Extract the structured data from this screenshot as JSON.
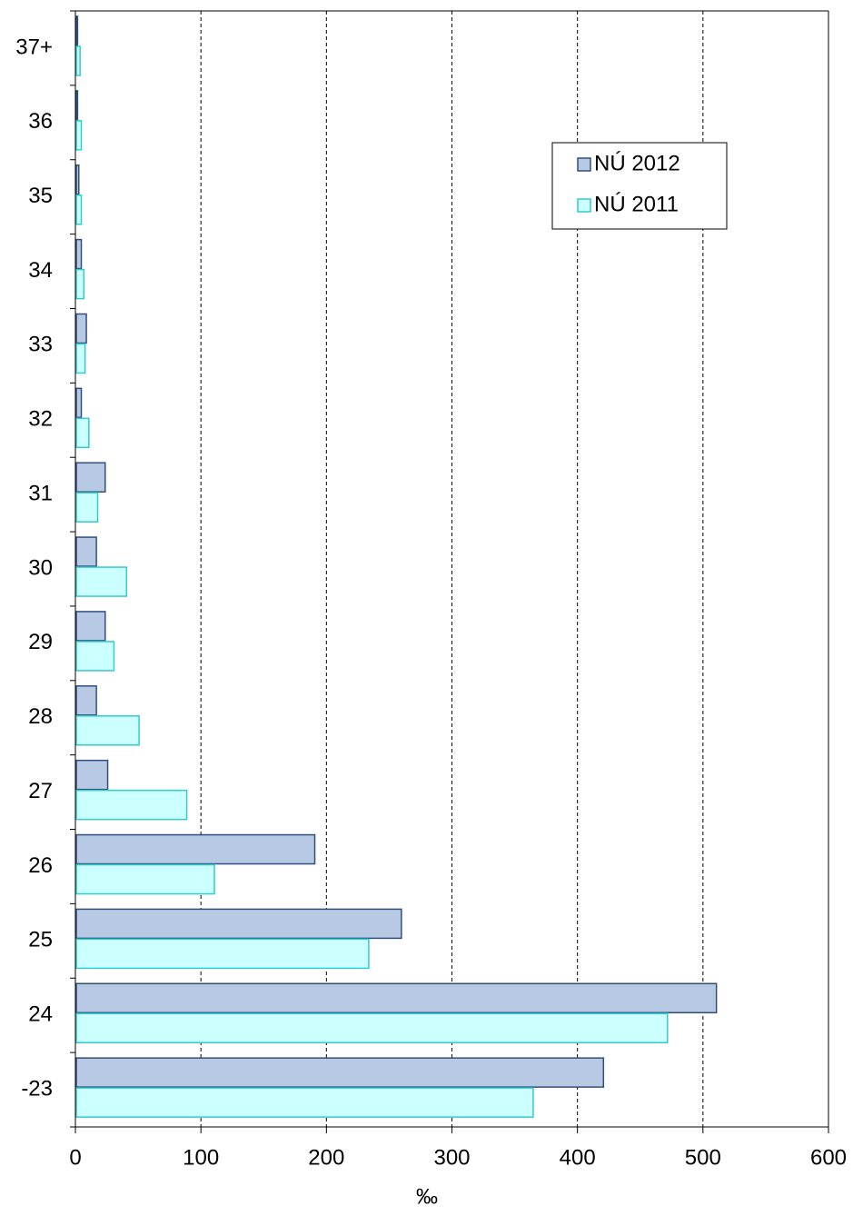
{
  "chart_data": {
    "type": "hbar",
    "xlabel": "‰",
    "categories": [
      "37+",
      "36",
      "35",
      "34",
      "33",
      "32",
      "31",
      "30",
      "29",
      "28",
      "27",
      "26",
      "25",
      "24",
      "-23"
    ],
    "series": [
      {
        "name": "NÚ 2012",
        "color": "#b8c9e3",
        "edge": "#2f4f7f",
        "values": [
          1,
          1,
          2,
          4,
          8,
          4,
          23,
          16,
          23,
          16,
          25,
          190,
          259,
          510,
          420
        ]
      },
      {
        "name": "NÚ 2011",
        "color": "#ccffff",
        "edge": "#33cccc",
        "values": [
          3,
          4,
          4,
          6,
          7,
          10,
          17,
          40,
          30,
          50,
          88,
          110,
          233,
          471,
          364
        ]
      }
    ],
    "xlim": [
      0,
      600
    ],
    "xticks": [
      0,
      100,
      200,
      300,
      400,
      500,
      600
    ],
    "grid": true,
    "legend": "upper right"
  }
}
